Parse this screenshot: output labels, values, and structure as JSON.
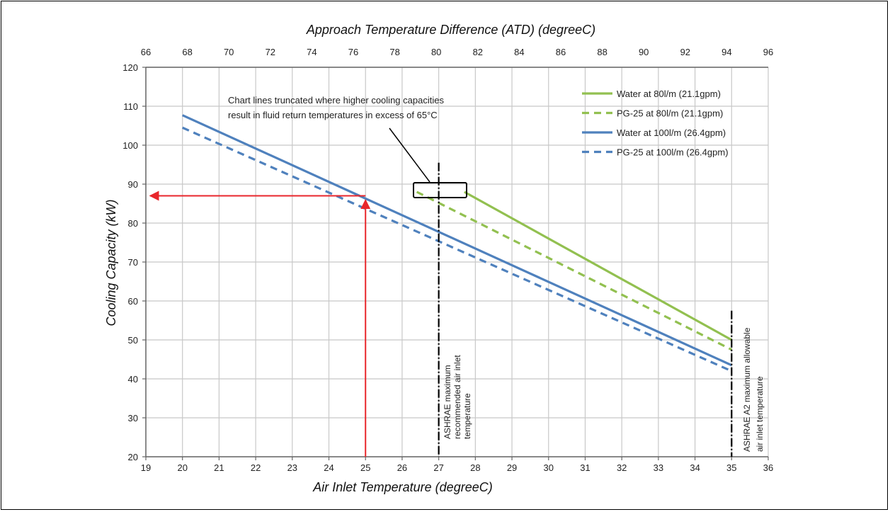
{
  "chart_data": {
    "type": "line",
    "xlabel": "Air Inlet Temperature (degreeC)",
    "x2label": "Approach Temperature Difference (ATD) (degreeC)",
    "ylabel": "Cooling Capacity (kW)",
    "xlim": [
      19,
      36
    ],
    "ylim": [
      20,
      120
    ],
    "x_ticks": [
      "19",
      "20",
      "21",
      "22",
      "23",
      "24",
      "25",
      "26",
      "27",
      "28",
      "29",
      "30",
      "31",
      "32",
      "33",
      "34",
      "35",
      "36"
    ],
    "x2_ticks": [
      "66",
      "68",
      "70",
      "72",
      "74",
      "76",
      "78",
      "80",
      "82",
      "84",
      "86",
      "88",
      "90",
      "92",
      "94",
      "96"
    ],
    "y_ticks": [
      "20",
      "30",
      "40",
      "50",
      "60",
      "70",
      "80",
      "90",
      "100",
      "110",
      "120"
    ],
    "grid": true,
    "legend_position": "top-right",
    "series": [
      {
        "name": "Water at 80l/m (21.1gpm)",
        "color": "#92c050",
        "dash": "solid",
        "x": [
          27.7,
          35.0
        ],
        "y": [
          88,
          50
        ]
      },
      {
        "name": "PG-25 at 80l/m (21.1gpm)",
        "color": "#92c050",
        "dash": "dashed",
        "x": [
          26.4,
          35.0
        ],
        "y": [
          88,
          47.5
        ]
      },
      {
        "name": "Water at 100l/m (26.4gpm)",
        "color": "#4f81bd",
        "dash": "solid",
        "x": [
          20.0,
          35.0
        ],
        "y": [
          107.7,
          43.5
        ]
      },
      {
        "name": "PG-25 at 100l/m (26.4gpm)",
        "color": "#4f81bd",
        "dash": "dashed",
        "x": [
          20.0,
          35.0
        ],
        "y": [
          104.5,
          42
        ]
      }
    ],
    "annotations": {
      "truncation_note": [
        "Chart lines truncated where higher cooling capacities",
        "result in fluid return temperatures in excess of 65°C"
      ],
      "ashrae_recommended": [
        "ASHRAE maximum",
        "recommended air inlet",
        "temperature"
      ],
      "ashrae_a2": [
        "ASHRAE A2 maximum allowable",
        "air inlet temperature"
      ],
      "ashrae_recommended_x": 27,
      "ashrae_a2_x": 35,
      "example_air_inlet": 25,
      "example_capacity": 87,
      "arrow_color": "#e8262b"
    }
  }
}
